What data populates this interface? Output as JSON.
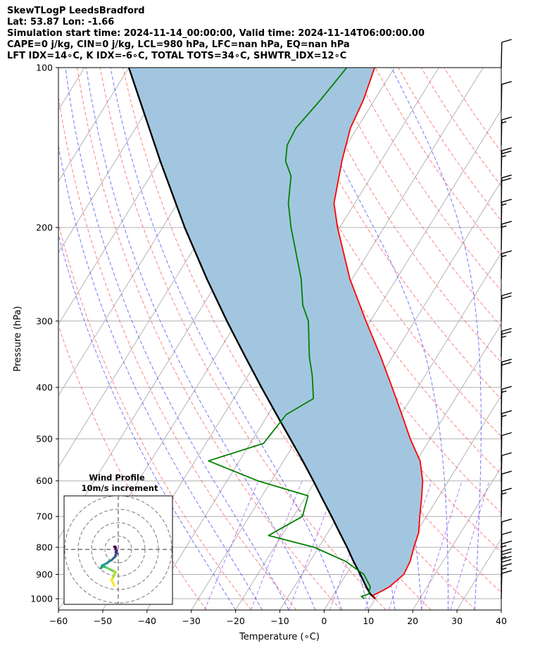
{
  "header": {
    "title": "SkewTLogP LeedsBradford",
    "location": "Lat: 53.87   Lon: -1.66",
    "times": "Simulation start time: 2024-11-14_00:00:00, Valid time: 2024-11-14T06:00:00.00",
    "indices1": "CAPE=0 j/kg, CIN=0 j/kg, LCL=980 hPa, LFC=nan hPa, EQ=nan hPa",
    "indices2": "LFT IDX=14∘C, K IDX=-6∘C, TOTAL TOTS=34∘C, SHWTR_IDX=12∘C"
  },
  "colors": {
    "temperature": "#ff0000",
    "dewpoint": "#008000",
    "parcel": "#000000",
    "cape_fill": "#a3c6e0",
    "dry_adiabat": "#ff4d4d",
    "moist_adiabat": "#3a3aff",
    "mixing_ratio": "#8a2be2",
    "isotherm": "#999999"
  },
  "chart_data": {
    "type": "line",
    "skew": true,
    "xlabel": "Temperature (∘C)",
    "ylabel": "Pressure (hPa)",
    "xlim": [
      -60,
      40
    ],
    "ylim": [
      1050,
      100
    ],
    "yscale": "log",
    "grid": true,
    "xticks": [
      "−60",
      "−50",
      "−40",
      "−30",
      "−20",
      "−10",
      "0",
      "10",
      "20",
      "30",
      "40"
    ],
    "yticks": [
      "100",
      "200",
      "300",
      "400",
      "500",
      "600",
      "700",
      "800",
      "900",
      "1000"
    ],
    "series": [
      {
        "role": "temperature",
        "points": [
          [
            1000,
            10
          ],
          [
            985,
            9
          ],
          [
            970,
            10.2
          ],
          [
            950,
            11.5
          ],
          [
            900,
            13
          ],
          [
            850,
            12.6
          ],
          [
            800,
            11.5
          ],
          [
            750,
            10.5
          ],
          [
            700,
            8.5
          ],
          [
            650,
            6.5
          ],
          [
            600,
            4.2
          ],
          [
            550,
            0.8
          ],
          [
            500,
            -4.5
          ],
          [
            450,
            -9.8
          ],
          [
            400,
            -15.8
          ],
          [
            350,
            -22.7
          ],
          [
            300,
            -31
          ],
          [
            250,
            -40.5
          ],
          [
            200,
            -50.5
          ],
          [
            180,
            -54.7
          ],
          [
            150,
            -58.8
          ],
          [
            130,
            -61.5
          ],
          [
            115,
            -62.5
          ],
          [
            100,
            -64.5
          ]
        ]
      },
      {
        "role": "dewpoint",
        "points": [
          [
            1000,
            7.5
          ],
          [
            990,
            6.5
          ],
          [
            980,
            7.8
          ],
          [
            950,
            7.2
          ],
          [
            900,
            4
          ],
          [
            850,
            -2
          ],
          [
            800,
            -11
          ],
          [
            760,
            -23
          ],
          [
            700,
            -18
          ],
          [
            640,
            -19.6
          ],
          [
            600,
            -33
          ],
          [
            550,
            -47
          ],
          [
            510,
            -37
          ],
          [
            450,
            -35.9
          ],
          [
            420,
            -32
          ],
          [
            380,
            -35.5
          ],
          [
            350,
            -38.8
          ],
          [
            300,
            -44
          ],
          [
            280,
            -47.5
          ],
          [
            250,
            -51.5
          ],
          [
            200,
            -61
          ],
          [
            180,
            -65
          ],
          [
            160,
            -68.2
          ],
          [
            150,
            -71.5
          ],
          [
            140,
            -73.4
          ],
          [
            130,
            -73.8
          ],
          [
            115,
            -72.2
          ],
          [
            100,
            -70.8
          ]
        ]
      },
      {
        "role": "parcel",
        "points": [
          [
            1000,
            10
          ],
          [
            980,
            8.2
          ],
          [
            950,
            6.3
          ],
          [
            900,
            3.2
          ],
          [
            850,
            -0.2
          ],
          [
            800,
            -3.6
          ],
          [
            750,
            -7.4
          ],
          [
            700,
            -11.4
          ],
          [
            650,
            -15.8
          ],
          [
            600,
            -20.5
          ],
          [
            550,
            -25.7
          ],
          [
            500,
            -31.6
          ],
          [
            450,
            -38.1
          ],
          [
            400,
            -45.3
          ],
          [
            350,
            -53.3
          ],
          [
            300,
            -62.4
          ],
          [
            250,
            -72.8
          ],
          [
            200,
            -85
          ],
          [
            150,
            -99.8
          ],
          [
            100,
            -120
          ]
        ]
      }
    ],
    "wind_barbs": {
      "levels": [
        1000,
        970,
        940,
        910,
        880,
        845,
        800,
        700,
        650,
        600,
        550,
        500,
        450,
        400,
        350,
        300,
        250,
        220,
        200,
        180,
        160,
        140,
        120,
        100
      ],
      "speed_kt": [
        10,
        15,
        20,
        25,
        15,
        10,
        10,
        15,
        10,
        10,
        10,
        15,
        15,
        20,
        25,
        20,
        15,
        15,
        15,
        20,
        25,
        15,
        10,
        10
      ]
    },
    "inset": {
      "title_line1": "Wind Profile",
      "title_line2": "10m/s increment",
      "hodograph_uv": [
        [
          -3,
          -27
        ],
        [
          -4,
          -25
        ],
        [
          -5,
          -23
        ],
        [
          -4,
          -21
        ],
        [
          -3,
          -19
        ],
        [
          -2,
          -17
        ],
        [
          -4,
          -16
        ],
        [
          -6,
          -15
        ],
        [
          -8,
          -14
        ],
        [
          -10,
          -13
        ],
        [
          -12,
          -13
        ],
        [
          -13,
          -14
        ],
        [
          -12,
          -12
        ],
        [
          -10,
          -11
        ],
        [
          -8,
          -10
        ],
        [
          -7,
          -9
        ],
        [
          -5,
          -8
        ],
        [
          -4,
          -7
        ],
        [
          -3,
          -6
        ],
        [
          -2,
          -5
        ],
        [
          -2,
          -4
        ],
        [
          -1,
          -3
        ],
        [
          -2,
          -2
        ],
        [
          -1,
          -1
        ],
        [
          -2,
          0
        ],
        [
          -2,
          1
        ],
        [
          -3,
          2
        ],
        [
          -2,
          2
        ]
      ]
    }
  }
}
